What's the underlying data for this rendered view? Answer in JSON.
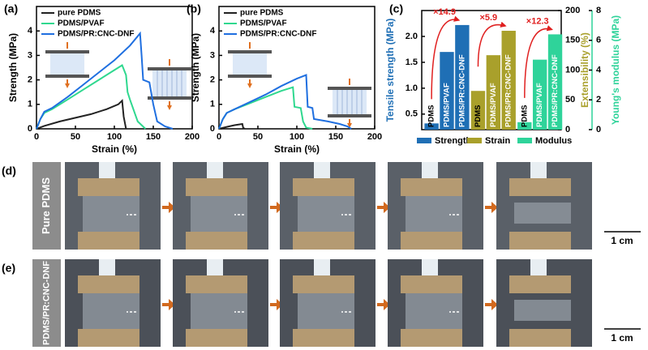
{
  "chart_data": [
    {
      "type": "line",
      "panel": "(a)",
      "xlabel": "Strain (%)",
      "ylabel": "Strength (MPa)",
      "xlim": [
        0,
        200
      ],
      "ylim": [
        0,
        5
      ],
      "xticks": [
        0,
        50,
        100,
        150,
        200
      ],
      "yticks": [
        0,
        1,
        2,
        3,
        4
      ],
      "legend": "upper left",
      "series": [
        {
          "name": "pure PDMS",
          "color": "#222222",
          "x": [
            0,
            10,
            30,
            50,
            70,
            90,
            105,
            110,
            112,
            115
          ],
          "values": [
            0,
            0.12,
            0.3,
            0.45,
            0.6,
            0.8,
            1.0,
            1.15,
            0.5,
            0
          ]
        },
        {
          "name": "PDMS/PVAF",
          "color": "#2fd88f",
          "x": [
            0,
            5,
            10,
            20,
            40,
            60,
            80,
            100,
            110,
            115,
            117,
            120,
            130,
            140
          ],
          "values": [
            0,
            0.4,
            0.65,
            0.8,
            1.2,
            1.6,
            2.0,
            2.4,
            2.6,
            2.2,
            1.5,
            1.2,
            0.3,
            0
          ]
        },
        {
          "name": "PDMS/PR:CNC-DNF",
          "color": "#1f6fe0",
          "x": [
            0,
            5,
            10,
            20,
            40,
            60,
            80,
            100,
            120,
            133,
            135,
            137,
            145,
            150,
            155,
            165,
            175
          ],
          "values": [
            0,
            0.4,
            0.7,
            0.85,
            1.3,
            1.8,
            2.3,
            2.8,
            3.4,
            3.9,
            3.0,
            2.0,
            1.9,
            1.0,
            0.3,
            0.1,
            0
          ]
        }
      ]
    },
    {
      "type": "line",
      "panel": "(b)",
      "xlabel": "Strain (%)",
      "ylabel": "Strength (MPa)",
      "xlim": [
        0,
        200
      ],
      "ylim": [
        0,
        5
      ],
      "xticks": [
        0,
        50,
        100,
        150,
        200
      ],
      "yticks": [
        0,
        1,
        2,
        3,
        4
      ],
      "legend": "upper left",
      "series": [
        {
          "name": "pure PDMS",
          "color": "#222222",
          "x": [
            0,
            10,
            20,
            30,
            31,
            33
          ],
          "values": [
            0,
            0.08,
            0.15,
            0.2,
            0.05,
            0
          ]
        },
        {
          "name": "PDMS/PVAF",
          "color": "#2fd88f",
          "x": [
            0,
            5,
            10,
            20,
            40,
            60,
            80,
            95,
            97,
            105,
            108,
            112,
            120
          ],
          "values": [
            0,
            0.4,
            0.65,
            0.8,
            1.05,
            1.3,
            1.55,
            1.7,
            0.9,
            0.85,
            0.3,
            0.05,
            0
          ]
        },
        {
          "name": "PDMS/PR:CNC-DNF",
          "color": "#1f6fe0",
          "x": [
            0,
            5,
            10,
            20,
            40,
            60,
            80,
            100,
            112,
            114,
            120,
            122,
            140,
            155,
            165,
            170
          ],
          "values": [
            0,
            0.4,
            0.65,
            0.8,
            1.1,
            1.4,
            1.75,
            2.05,
            2.2,
            0.9,
            0.85,
            0.4,
            0.3,
            0.2,
            0.1,
            0
          ]
        }
      ]
    },
    {
      "type": "bar",
      "panel": "(c)",
      "ylabel": "Tensile strength (MPa)",
      "y2label": "Extensibility (%)",
      "y3label": "Young's modulus (MPa)",
      "categories": [
        "PDMS",
        "PDMS/PVAF",
        "PDMS/PR:CNC-DNF"
      ],
      "ylim": [
        0.2,
        2.5
      ],
      "yticks": [
        0.5,
        {
          "value": 1,
          "label": "1.0"
        },
        1.5,
        {
          "value": 2,
          "label": "2.0"
        }
      ],
      "y2lim": [
        0,
        200
      ],
      "y2ticks": [
        0,
        50,
        100,
        150,
        200
      ],
      "y3lim": [
        0,
        8
      ],
      "y3ticks": [
        0,
        2,
        4,
        6,
        8
      ],
      "annotations": [
        "×14.9",
        "×5.9",
        "×12.3"
      ],
      "series": [
        {
          "name": "Strength",
          "color": "#1f6fb5",
          "axis": "y",
          "values": [
            0.32,
            1.7,
            2.22
          ]
        },
        {
          "name": "Strain",
          "color": "#a9a02b",
          "axis": "y2",
          "values": [
            65,
            125,
            166
          ]
        },
        {
          "name": "Modulus",
          "color": "#2fd39a",
          "axis": "y3",
          "values": [
            0.5,
            4.7,
            6.4
          ]
        }
      ]
    }
  ],
  "photos": [
    {
      "panel": "(d)",
      "sample": "Pure PDMS",
      "scale": "1 cm"
    },
    {
      "panel": "(e)",
      "sample": "PDMS/PR:CNC-DNF",
      "scale": "1 cm"
    }
  ]
}
